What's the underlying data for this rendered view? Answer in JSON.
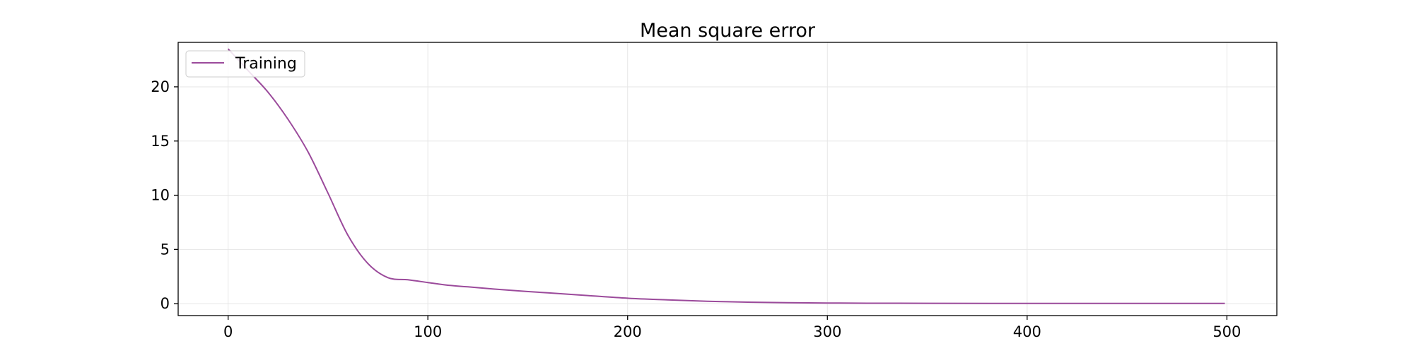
{
  "chart_data": {
    "type": "line",
    "title": "Mean square error",
    "xlabel": "",
    "ylabel": "",
    "xlim": [
      -25,
      525
    ],
    "ylim": [
      -1.1,
      24.1
    ],
    "xticks": [
      0,
      100,
      200,
      300,
      400,
      500
    ],
    "yticks": [
      0,
      5,
      10,
      15,
      20
    ],
    "grid": true,
    "legend": "top-left",
    "series": [
      {
        "name": "Training",
        "color": "#9b4a9b",
        "x": [
          0,
          10,
          20,
          30,
          40,
          50,
          60,
          70,
          80,
          90,
          100,
          110,
          120,
          140,
          160,
          180,
          200,
          220,
          240,
          260,
          280,
          300,
          320,
          350,
          400,
          450,
          499
        ],
        "y": [
          23.5,
          21.5,
          19.5,
          17.0,
          14.0,
          10.2,
          6.3,
          3.7,
          2.4,
          2.2,
          1.95,
          1.7,
          1.55,
          1.25,
          1.0,
          0.75,
          0.5,
          0.35,
          0.22,
          0.14,
          0.09,
          0.06,
          0.04,
          0.03,
          0.02,
          0.02,
          0.02
        ]
      }
    ]
  }
}
